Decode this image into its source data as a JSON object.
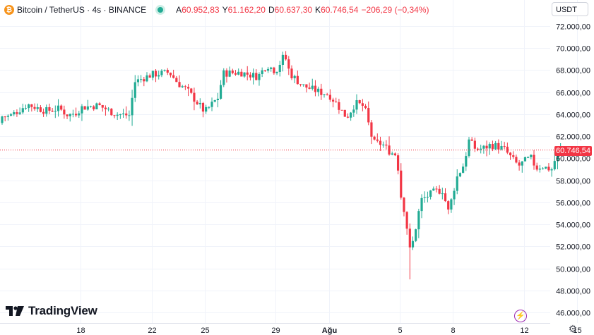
{
  "header": {
    "symbol": "Bitcoin / TetherUS · 4s · BINANCE",
    "coin_glyph": "₿",
    "ohlc": [
      {
        "key": "A",
        "value": "60.952,83"
      },
      {
        "key": "Y",
        "value": "61.162,20"
      },
      {
        "key": "D",
        "value": "60.637,30"
      },
      {
        "key": "K",
        "value": "60.746,54"
      }
    ],
    "change": "−206,29 (−0,34%)"
  },
  "currency_label": "USDT",
  "brand": "TradingView",
  "chart_data": {
    "type": "candlestick",
    "y_ticks": [
      "72.000,00",
      "70.000,00",
      "68.000,00",
      "66.000,00",
      "64.000,00",
      "62.000,00",
      "60.000,00",
      "58.000,00",
      "56.000,00",
      "54.000,00",
      "52.000,00",
      "50.000,00",
      "48.000,00",
      "46.000,00"
    ],
    "y_tick_values": [
      72000,
      70000,
      68000,
      66000,
      64000,
      62000,
      60000,
      58000,
      56000,
      54000,
      52000,
      50000,
      48000,
      46000
    ],
    "ylim": [
      45500,
      73200
    ],
    "x_ticks": [
      {
        "label": "18",
        "day": 18
      },
      {
        "label": "22",
        "day": 22
      },
      {
        "label": "25",
        "day": 25
      },
      {
        "label": "29",
        "day": 29
      },
      {
        "label": "Ağu",
        "day": 32
      },
      {
        "label": "5",
        "day": 36
      },
      {
        "label": "8",
        "day": 39
      },
      {
        "label": "12",
        "day": 43
      },
      {
        "label": "15",
        "day": 46
      }
    ],
    "x_start_day": 13.45,
    "candles_per_day": 6,
    "last_price": 60746.54,
    "last_price_label": "60.746,54",
    "up_color": "#22ab94",
    "down_color": "#f23645",
    "key_closes": [
      [
        14.0,
        63800
      ],
      [
        15.0,
        64900
      ],
      [
        16.0,
        64300
      ],
      [
        16.8,
        64500
      ],
      [
        17.3,
        63900
      ],
      [
        17.8,
        64200
      ],
      [
        18.0,
        64600
      ],
      [
        19.0,
        64800
      ],
      [
        20.0,
        64000
      ],
      [
        20.8,
        63900
      ],
      [
        21.0,
        66900
      ],
      [
        22.0,
        67600
      ],
      [
        23.0,
        67800
      ],
      [
        23.5,
        66800
      ],
      [
        24.0,
        66200
      ],
      [
        25.0,
        64200
      ],
      [
        25.8,
        65600
      ],
      [
        26.0,
        67700
      ],
      [
        27.0,
        67800
      ],
      [
        28.0,
        67400
      ],
      [
        28.5,
        68500
      ],
      [
        29.0,
        67900
      ],
      [
        29.5,
        69400
      ],
      [
        29.8,
        67700
      ],
      [
        30.5,
        66600
      ],
      [
        31.5,
        66000
      ],
      [
        32.0,
        65800
      ],
      [
        32.5,
        64800
      ],
      [
        33.0,
        63700
      ],
      [
        33.5,
        65000
      ],
      [
        34.0,
        64700
      ],
      [
        34.5,
        61400
      ],
      [
        35.0,
        61300
      ],
      [
        35.5,
        60500
      ],
      [
        35.85,
        60300
      ],
      [
        36.0,
        57000
      ],
      [
        36.3,
        55000
      ],
      [
        36.6,
        51300
      ],
      [
        36.9,
        53700
      ],
      [
        37.2,
        56200
      ],
      [
        37.6,
        56600
      ],
      [
        38.0,
        57000
      ],
      [
        38.4,
        57100
      ],
      [
        38.75,
        55100
      ],
      [
        39.2,
        58200
      ],
      [
        39.6,
        59400
      ],
      [
        39.9,
        61600
      ],
      [
        40.3,
        60800
      ],
      [
        40.7,
        60900
      ],
      [
        41.1,
        61200
      ],
      [
        41.5,
        61100
      ],
      [
        41.9,
        60800
      ],
      [
        42.3,
        60000
      ],
      [
        42.7,
        59300
      ],
      [
        43.1,
        59800
      ],
      [
        43.4,
        60000
      ],
      [
        43.7,
        59100
      ],
      [
        44.0,
        59300
      ],
      [
        44.3,
        59100
      ],
      [
        44.6,
        59000
      ],
      [
        44.9,
        60700
      ],
      [
        45.2,
        60747
      ]
    ]
  }
}
